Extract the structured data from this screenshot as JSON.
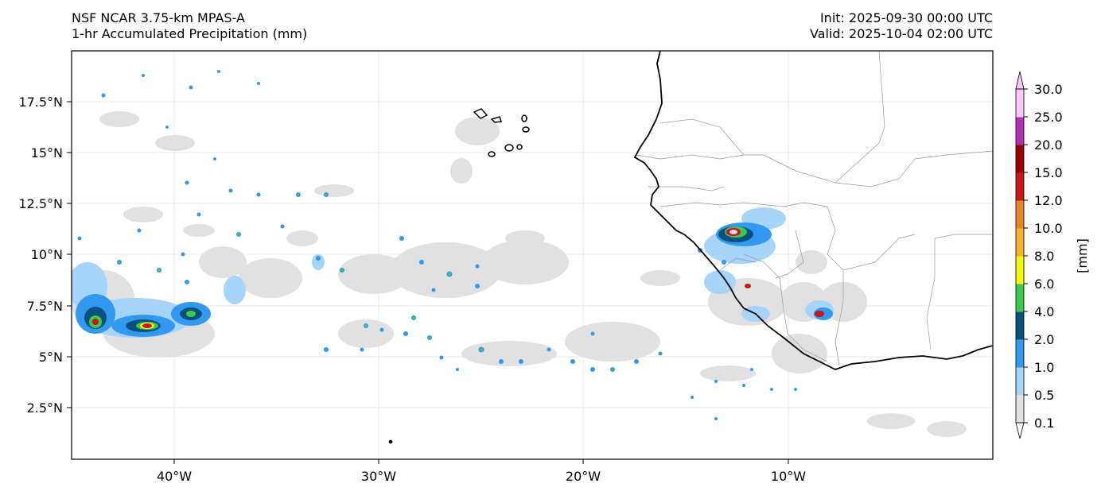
{
  "header": {
    "model": "NSF NCAR 3.75-km MPAS-A",
    "field": "1-hr Accumulated Precipitation (mm)",
    "init": "Init: 2025-09-30 00:00 UTC",
    "valid": "Valid: 2025-10-04 02:00 UTC"
  },
  "map": {
    "region": "Tropical eastern Atlantic and West African coast",
    "lon_range": [
      -45,
      0
    ],
    "lat_range": [
      0,
      20
    ],
    "lat_ticks": [
      "17.5°N",
      "15°N",
      "12.5°N",
      "10°N",
      "7.5°N",
      "5°N",
      "2.5°N"
    ],
    "lon_ticks": [
      "40°W",
      "30°W",
      "20°W",
      "10°W"
    ]
  },
  "colorbar": {
    "label": "[mm]",
    "levels": [
      "0.1",
      "0.5",
      "1.0",
      "2.0",
      "4.0",
      "6.0",
      "8.0",
      "10.0",
      "12.0",
      "15.0",
      "20.0",
      "25.0",
      "30.0"
    ],
    "colors": [
      "#e1e1e1",
      "#a6d4fb",
      "#3399f0",
      "#08517f",
      "#3cc94d",
      "#f4f806",
      "#f8b02a",
      "#e8862a",
      "#cc1414",
      "#9a0000",
      "#b22fb8",
      "#f8c8f8"
    ]
  }
}
